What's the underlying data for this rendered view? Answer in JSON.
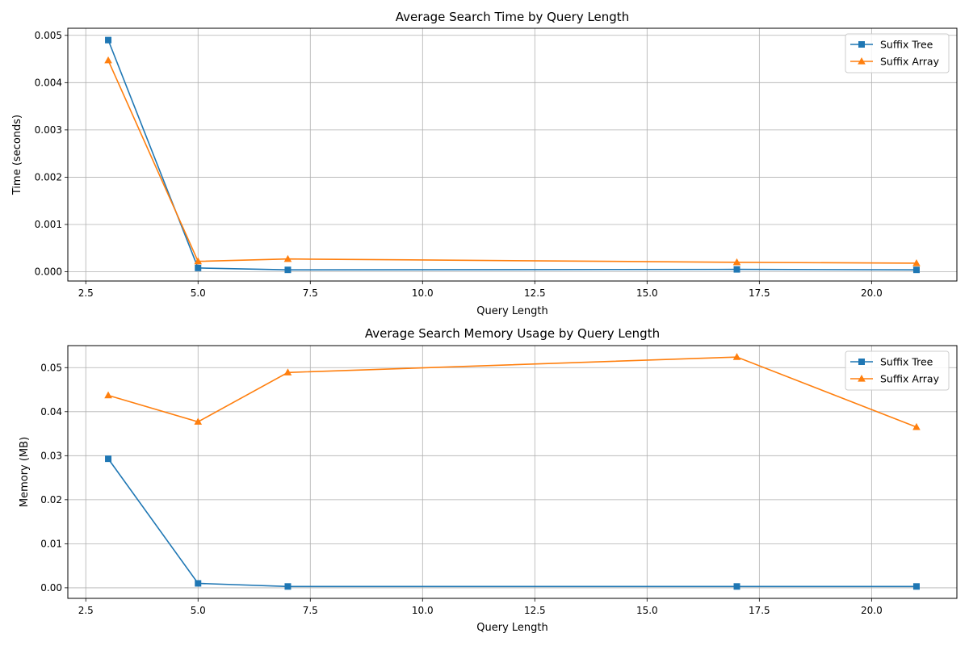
{
  "colors": {
    "suffix_tree": "#1f77b4",
    "suffix_array": "#ff7f0e",
    "grid": "#b0b0b0"
  },
  "chart_data": [
    {
      "type": "line",
      "title": "Average Search Time by Query Length",
      "xlabel": "Query Length",
      "ylabel": "Time (seconds)",
      "xlim": [
        2.1,
        21.9
      ],
      "ylim": [
        -0.000196,
        0.00515
      ],
      "xticks": [
        2.5,
        5.0,
        7.5,
        10.0,
        12.5,
        15.0,
        17.5,
        20.0
      ],
      "xtick_labels": [
        "2.5",
        "5.0",
        "7.5",
        "10.0",
        "12.5",
        "15.0",
        "17.5",
        "20.0"
      ],
      "yticks": [
        0,
        0.001,
        0.002,
        0.003,
        0.004,
        0.005
      ],
      "ytick_labels": [
        "0.000",
        "0.001",
        "0.002",
        "0.003",
        "0.004",
        "0.005"
      ],
      "grid": true,
      "legend_position": "top-right",
      "x": [
        3,
        5,
        7,
        17,
        21
      ],
      "series": [
        {
          "name": "Suffix Tree",
          "marker": "square",
          "color": "#1f77b4",
          "values": [
            0.0049,
            8e-05,
            4e-05,
            5e-05,
            4e-05
          ]
        },
        {
          "name": "Suffix Array",
          "marker": "triangle",
          "color": "#ff7f0e",
          "values": [
            0.00447,
            0.00022,
            0.00027,
            0.0002,
            0.00018
          ]
        }
      ]
    },
    {
      "type": "line",
      "title": "Average Search Memory Usage by Query Length",
      "xlabel": "Query Length",
      "ylabel": "Memory (MB)",
      "xlim": [
        2.1,
        21.9
      ],
      "ylim": [
        -0.0024,
        0.055
      ],
      "xticks": [
        2.5,
        5.0,
        7.5,
        10.0,
        12.5,
        15.0,
        17.5,
        20.0
      ],
      "xtick_labels": [
        "2.5",
        "5.0",
        "7.5",
        "10.0",
        "12.5",
        "15.0",
        "17.5",
        "20.0"
      ],
      "yticks": [
        0,
        0.01,
        0.02,
        0.03,
        0.04,
        0.05
      ],
      "ytick_labels": [
        "0.00",
        "0.01",
        "0.02",
        "0.03",
        "0.04",
        "0.05"
      ],
      "grid": true,
      "legend_position": "top-right",
      "x": [
        3,
        5,
        7,
        17,
        21
      ],
      "series": [
        {
          "name": "Suffix Tree",
          "marker": "square",
          "color": "#1f77b4",
          "values": [
            0.0293,
            0.001,
            0.0003,
            0.0003,
            0.0003
          ]
        },
        {
          "name": "Suffix Array",
          "marker": "triangle",
          "color": "#ff7f0e",
          "values": [
            0.0437,
            0.0377,
            0.0489,
            0.0524,
            0.0365
          ]
        }
      ]
    }
  ]
}
